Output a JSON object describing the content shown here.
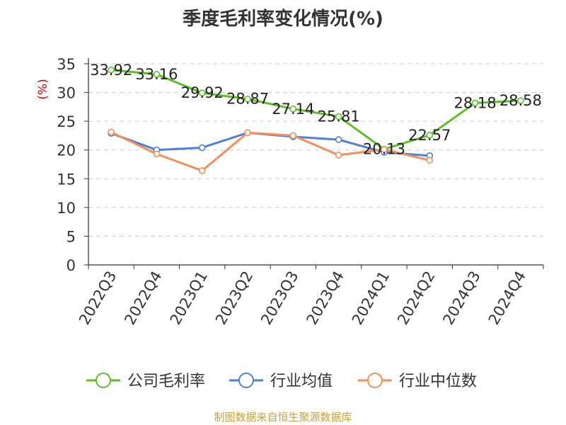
{
  "chart_data": {
    "type": "line",
    "title": "季度毛利率变化情况(%)",
    "ylabel": "(%)",
    "ylim": [
      0,
      35
    ],
    "yticks": [
      0,
      5,
      10,
      15,
      20,
      25,
      30,
      35
    ],
    "grid": true,
    "legend_position": "bottom",
    "categories": [
      "2022Q3",
      "2022Q4",
      "2023Q1",
      "2023Q2",
      "2023Q3",
      "2023Q4",
      "2024Q1",
      "2024Q2",
      "2024Q3",
      "2024Q4"
    ],
    "series": [
      {
        "name": "公司毛利率",
        "color": "#5cbf2a",
        "show_labels": true,
        "values": [
          33.92,
          33.16,
          29.92,
          28.87,
          27.14,
          25.81,
          20.13,
          22.57,
          28.18,
          28.58
        ]
      },
      {
        "name": "行业均值",
        "color": "#4f7fdc",
        "show_labels": false,
        "values": [
          22.9,
          20.0,
          20.4,
          23.0,
          22.3,
          21.8,
          19.6,
          19.0,
          null,
          null
        ]
      },
      {
        "name": "行业中位数",
        "color": "#f58c5a",
        "show_labels": false,
        "values": [
          23.1,
          19.3,
          16.4,
          23.0,
          22.5,
          19.1,
          20.1,
          18.2,
          null,
          null
        ]
      }
    ]
  },
  "source": "制图数据来自恒生聚源数据库"
}
